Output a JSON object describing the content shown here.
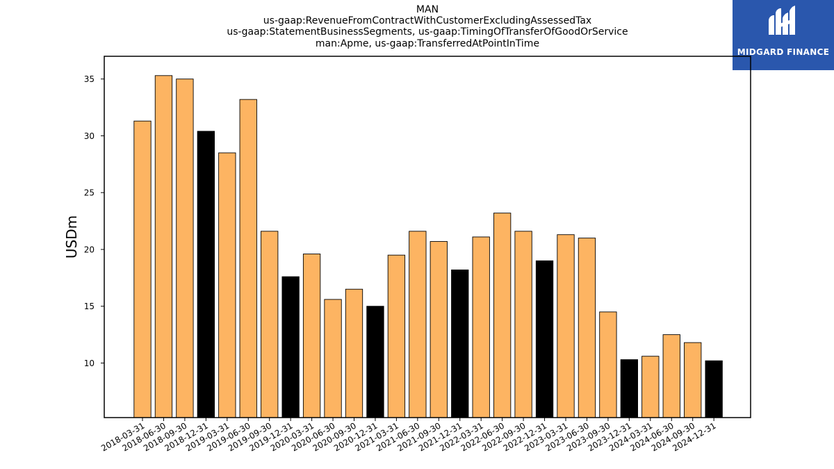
{
  "title_lines": [
    "MAN",
    "us-gaap:RevenueFromContractWithCustomerExcludingAssessedTax",
    "us-gaap:StatementBusinessSegments, us-gaap:TimingOfTransferOfGoodOrService",
    "man:Apme, us-gaap:TransferredAtPointInTime"
  ],
  "logo": {
    "text": "MIDGARD FINANCE",
    "icon": "midgard-logo-icon",
    "background": "#2a57ad"
  },
  "colors": {
    "bar_default": "#fdb462",
    "bar_highlight": "#000000",
    "edge": "#000000"
  },
  "chart_data": {
    "type": "bar",
    "title": "MAN\nus-gaap:RevenueFromContractWithCustomerExcludingAssessedTax\nus-gaap:StatementBusinessSegments, us-gaap:TimingOfTransferOfGoodOrService\nman:Apme, us-gaap:TransferredAtPointInTime",
    "xlabel": "",
    "ylabel": "USDm",
    "ylim": [
      5.2,
      37
    ],
    "yticks": [
      10,
      15,
      20,
      25,
      30,
      35
    ],
    "categories": [
      "2018-03-31",
      "2018-06-30",
      "2018-09-30",
      "2018-12-31",
      "2019-03-31",
      "2019-06-30",
      "2019-09-30",
      "2019-12-31",
      "2020-03-31",
      "2020-06-30",
      "2020-09-30",
      "2020-12-31",
      "2021-03-31",
      "2021-06-30",
      "2021-09-30",
      "2021-12-31",
      "2022-03-31",
      "2022-06-30",
      "2022-09-30",
      "2022-12-31",
      "2023-03-31",
      "2023-06-30",
      "2023-09-30",
      "2023-12-31",
      "2024-03-31",
      "2024-06-30",
      "2024-09-30",
      "2024-12-31"
    ],
    "values": [
      31.3,
      35.3,
      35.0,
      30.4,
      28.5,
      33.2,
      21.6,
      17.6,
      19.6,
      15.6,
      16.5,
      15.0,
      19.5,
      21.6,
      20.7,
      18.2,
      21.1,
      23.2,
      21.6,
      19.0,
      21.3,
      21.0,
      14.5,
      10.3,
      10.6,
      12.5,
      11.8,
      10.2
    ],
    "highlight": [
      false,
      false,
      false,
      true,
      false,
      false,
      false,
      true,
      false,
      false,
      false,
      true,
      false,
      false,
      false,
      true,
      false,
      false,
      false,
      true,
      false,
      false,
      false,
      true,
      false,
      false,
      false,
      true
    ],
    "grid": false,
    "legend": "none"
  }
}
